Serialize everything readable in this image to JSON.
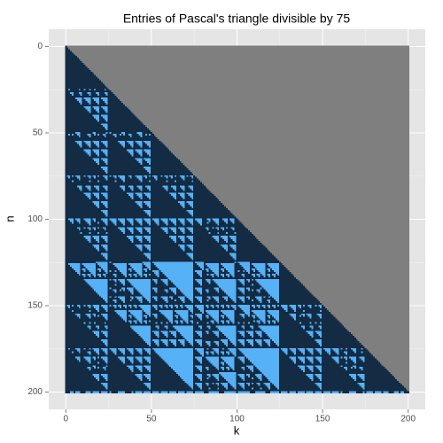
{
  "chart_data": {
    "type": "raster",
    "title": "Entries of Pascal's triangle divisible by 75",
    "x_label": "k",
    "y_label": "n",
    "divisor": 75,
    "n_max": 200,
    "xlim": [
      -10,
      210
    ],
    "ylim": [
      210,
      -10
    ],
    "xticks": [
      0,
      50,
      100,
      150,
      200
    ],
    "yticks": [
      0,
      50,
      100,
      150,
      200
    ],
    "colors": {
      "true": "#56B1F7",
      "false": "#132B43",
      "na": "#7F7F7F"
    },
    "grid": true
  }
}
